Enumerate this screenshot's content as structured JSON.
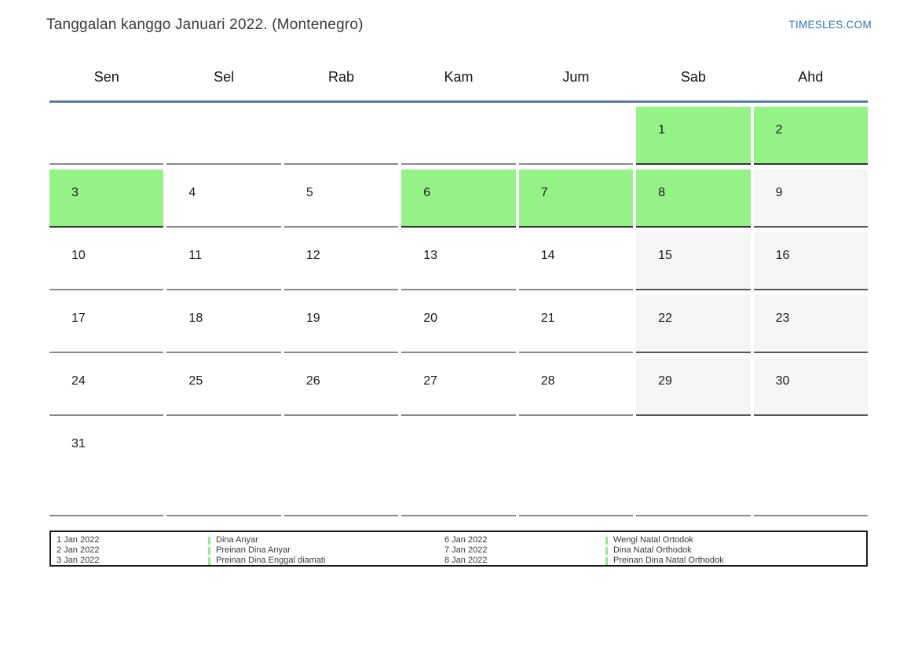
{
  "page": {
    "title": "Tanggalan kanggo Januari 2022. (Montenegro)",
    "site_link": "TIMESLES.COM"
  },
  "colors": {
    "holiday_green": "#94f287",
    "weekend_gray": "#f5f5f5",
    "header_rule_blue": "#5b7da1",
    "link_blue": "#2e74b5",
    "legend_bar_green": "#8af08a"
  },
  "calendar": {
    "weekday_headers": [
      "Sen",
      "Sel",
      "Rab",
      "Kam",
      "Jum",
      "Sab",
      "Ahd"
    ],
    "cells": [
      {
        "day": "",
        "type": "empty"
      },
      {
        "day": "",
        "type": "empty"
      },
      {
        "day": "",
        "type": "empty"
      },
      {
        "day": "",
        "type": "empty"
      },
      {
        "day": "",
        "type": "empty"
      },
      {
        "day": "1",
        "type": "holiday"
      },
      {
        "day": "2",
        "type": "holiday"
      },
      {
        "day": "3",
        "type": "holiday"
      },
      {
        "day": "4",
        "type": "workday"
      },
      {
        "day": "5",
        "type": "workday"
      },
      {
        "day": "6",
        "type": "holiday"
      },
      {
        "day": "7",
        "type": "holiday"
      },
      {
        "day": "8",
        "type": "holiday"
      },
      {
        "day": "9",
        "type": "weekend"
      },
      {
        "day": "10",
        "type": "workday"
      },
      {
        "day": "11",
        "type": "workday"
      },
      {
        "day": "12",
        "type": "workday"
      },
      {
        "day": "13",
        "type": "workday"
      },
      {
        "day": "14",
        "type": "workday"
      },
      {
        "day": "15",
        "type": "weekend"
      },
      {
        "day": "16",
        "type": "weekend"
      },
      {
        "day": "17",
        "type": "workday"
      },
      {
        "day": "18",
        "type": "workday"
      },
      {
        "day": "19",
        "type": "workday"
      },
      {
        "day": "20",
        "type": "workday"
      },
      {
        "day": "21",
        "type": "workday"
      },
      {
        "day": "22",
        "type": "weekend"
      },
      {
        "day": "23",
        "type": "weekend"
      },
      {
        "day": "24",
        "type": "workday"
      },
      {
        "day": "25",
        "type": "workday"
      },
      {
        "day": "26",
        "type": "workday"
      },
      {
        "day": "27",
        "type": "workday"
      },
      {
        "day": "28",
        "type": "workday"
      },
      {
        "day": "29",
        "type": "weekend"
      },
      {
        "day": "30",
        "type": "weekend"
      },
      {
        "day": "31",
        "type": "workday"
      },
      {
        "day": "",
        "type": "empty"
      },
      {
        "day": "",
        "type": "empty"
      },
      {
        "day": "",
        "type": "empty"
      },
      {
        "day": "",
        "type": "empty"
      },
      {
        "day": "",
        "type": "empty"
      },
      {
        "day": "",
        "type": "empty"
      }
    ]
  },
  "legend": {
    "entries": [
      {
        "date": "1 Jan 2022",
        "name": "Dina Anyar"
      },
      {
        "date": "2 Jan 2022",
        "name": "Preinan Dina Anyar"
      },
      {
        "date": "3 Jan 2022",
        "name": "Preinan Dina Enggal diamati"
      },
      {
        "date": "6 Jan 2022",
        "name": "Wengi Natal Ortodok"
      },
      {
        "date": "7 Jan 2022",
        "name": "Dina Natal Orthodok"
      },
      {
        "date": "8 Jan 2022",
        "name": "Preinan Dina Natal Orthodok"
      }
    ]
  }
}
